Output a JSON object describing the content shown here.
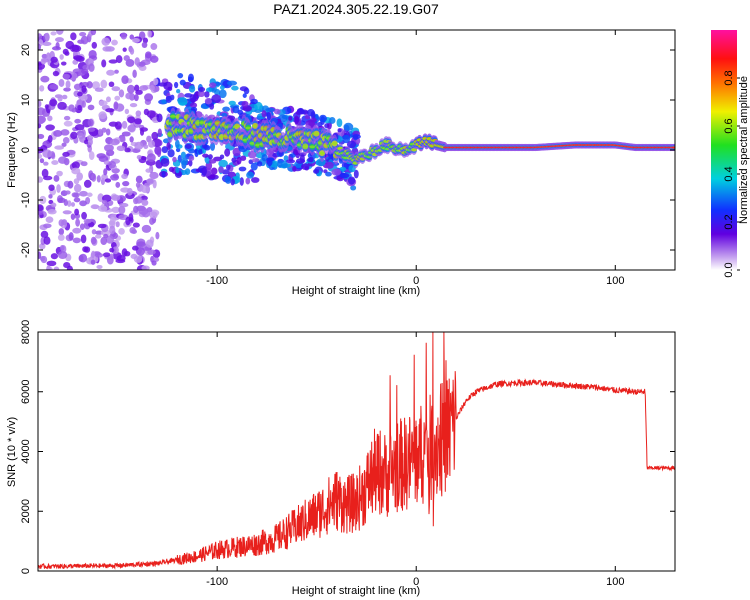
{
  "title": "PAZ1.2024.305.22.19.G07",
  "colors": {
    "line": "#e8201c",
    "axis": "#000000",
    "background": "#ffffff"
  },
  "chart_data": [
    {
      "type": "heatmap",
      "xlabel": "Height of straight line (km)",
      "ylabel": "Frequency (Hz)",
      "xlim": [
        -190,
        130
      ],
      "ylim": [
        -24,
        24
      ],
      "xticks": [
        -100,
        0,
        100
      ],
      "yticks": [
        -20,
        -10,
        0,
        10,
        20
      ],
      "colorbar": {
        "label": "Normalized spectral amplitude",
        "range": [
          0,
          1
        ],
        "ticks": [
          "0.0",
          "0.2",
          "0.4",
          "0.6",
          "0.8"
        ],
        "colormap": "rainbow (purple-blue-cyan-green-yellow-red-magenta)"
      },
      "ridge": {
        "x": [
          -120,
          -100,
          -80,
          -60,
          -45,
          -35,
          -30,
          -25,
          -20,
          -15,
          -10,
          -5,
          0,
          5,
          10,
          15,
          20,
          40,
          60,
          80,
          100,
          110,
          130
        ],
        "y": [
          5,
          4,
          3,
          2,
          1,
          -1,
          -2,
          -1,
          0,
          1,
          0.5,
          0,
          1,
          2,
          1,
          0.5,
          0.5,
          0.5,
          0.5,
          1,
          1,
          0.5,
          0.5
        ]
      }
    },
    {
      "type": "line",
      "xlabel": "Height of straight line (km)",
      "ylabel": "SNR (10 * v/v)",
      "xlim": [
        -190,
        130
      ],
      "ylim": [
        0,
        8000
      ],
      "xticks": [
        -100,
        0,
        100
      ],
      "yticks": [
        0,
        2000,
        4000,
        6000,
        8000
      ],
      "series": [
        {
          "x": [
            -190,
            -150,
            -130,
            -110,
            -100,
            -90,
            -80,
            -70,
            -60,
            -50,
            -40,
            -35,
            -30,
            -25,
            -20,
            -15,
            -10,
            -5,
            0,
            5,
            10,
            15,
            20,
            25,
            30,
            40,
            50,
            60,
            70,
            80,
            90,
            100,
            110,
            115,
            116,
            120,
            130
          ],
          "y": [
            150,
            180,
            250,
            500,
            700,
            800,
            900,
            1100,
            1500,
            1900,
            2400,
            2200,
            2300,
            2800,
            3400,
            3200,
            3500,
            3600,
            3800,
            4000,
            4200,
            4500,
            5100,
            5700,
            6000,
            6250,
            6300,
            6300,
            6250,
            6200,
            6150,
            6050,
            6000,
            6000,
            3450,
            3450,
            3450
          ]
        }
      ]
    }
  ]
}
